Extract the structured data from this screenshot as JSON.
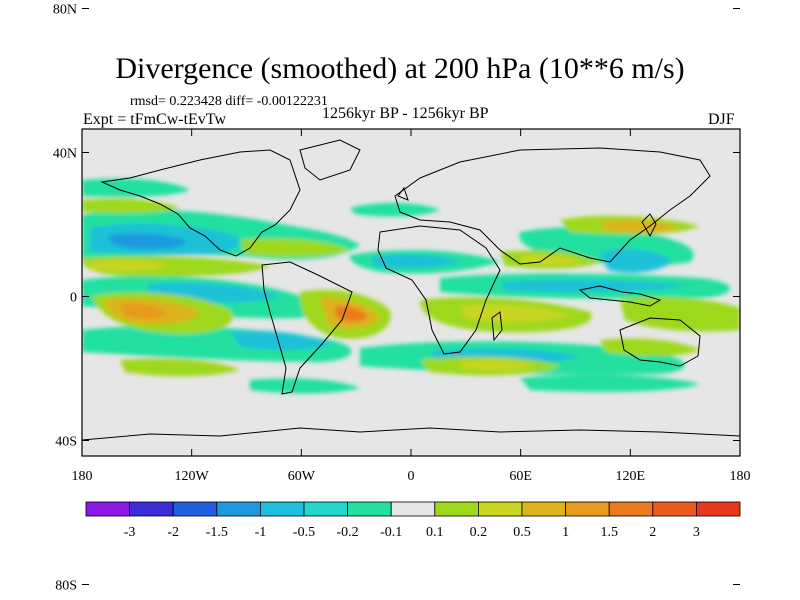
{
  "header": {
    "title": "Divergence (smoothed) at 200 hPa (10**6 m/s)",
    "stats": "rmsd= 0.223428  diff= -0.00122231",
    "expt": "Expt = tFmCw-tEvTw",
    "period": "1256kyr BP - 1256kyr BP",
    "season": "DJF"
  },
  "map": {
    "lat_ticks": [
      {
        "label": "80N",
        "value": 80
      },
      {
        "label": "40N",
        "value": 40
      },
      {
        "label": "0",
        "value": 0
      },
      {
        "label": "40S",
        "value": -40
      },
      {
        "label": "80S",
        "value": -80
      }
    ],
    "lon_ticks": [
      {
        "label": "180",
        "value": -180
      },
      {
        "label": "120W",
        "value": -120
      },
      {
        "label": "60W",
        "value": -60
      },
      {
        "label": "0",
        "value": 0
      },
      {
        "label": "60E",
        "value": 60
      },
      {
        "label": "120E",
        "value": 120
      },
      {
        "label": "180",
        "value": 180
      }
    ],
    "background_color": "#e6e6e6",
    "coast_color": "#000000"
  },
  "colorbar": {
    "colors": [
      "#8a18e6",
      "#3c2bd8",
      "#1f5fe0",
      "#1d9ade",
      "#1ec1d8",
      "#22d6cc",
      "#24e0a0",
      "#e6e6e6",
      "#9ed81c",
      "#c8d622",
      "#dcb41c",
      "#e69a1e",
      "#ea7a1c",
      "#ec5a1e",
      "#e63a1c"
    ],
    "labels": [
      "-3",
      "-2",
      "-1.5",
      "-1",
      "-0.5",
      "-0.2",
      "-0.1",
      "0.1",
      "0.2",
      "0.5",
      "1",
      "1.5",
      "2",
      "3"
    ]
  }
}
